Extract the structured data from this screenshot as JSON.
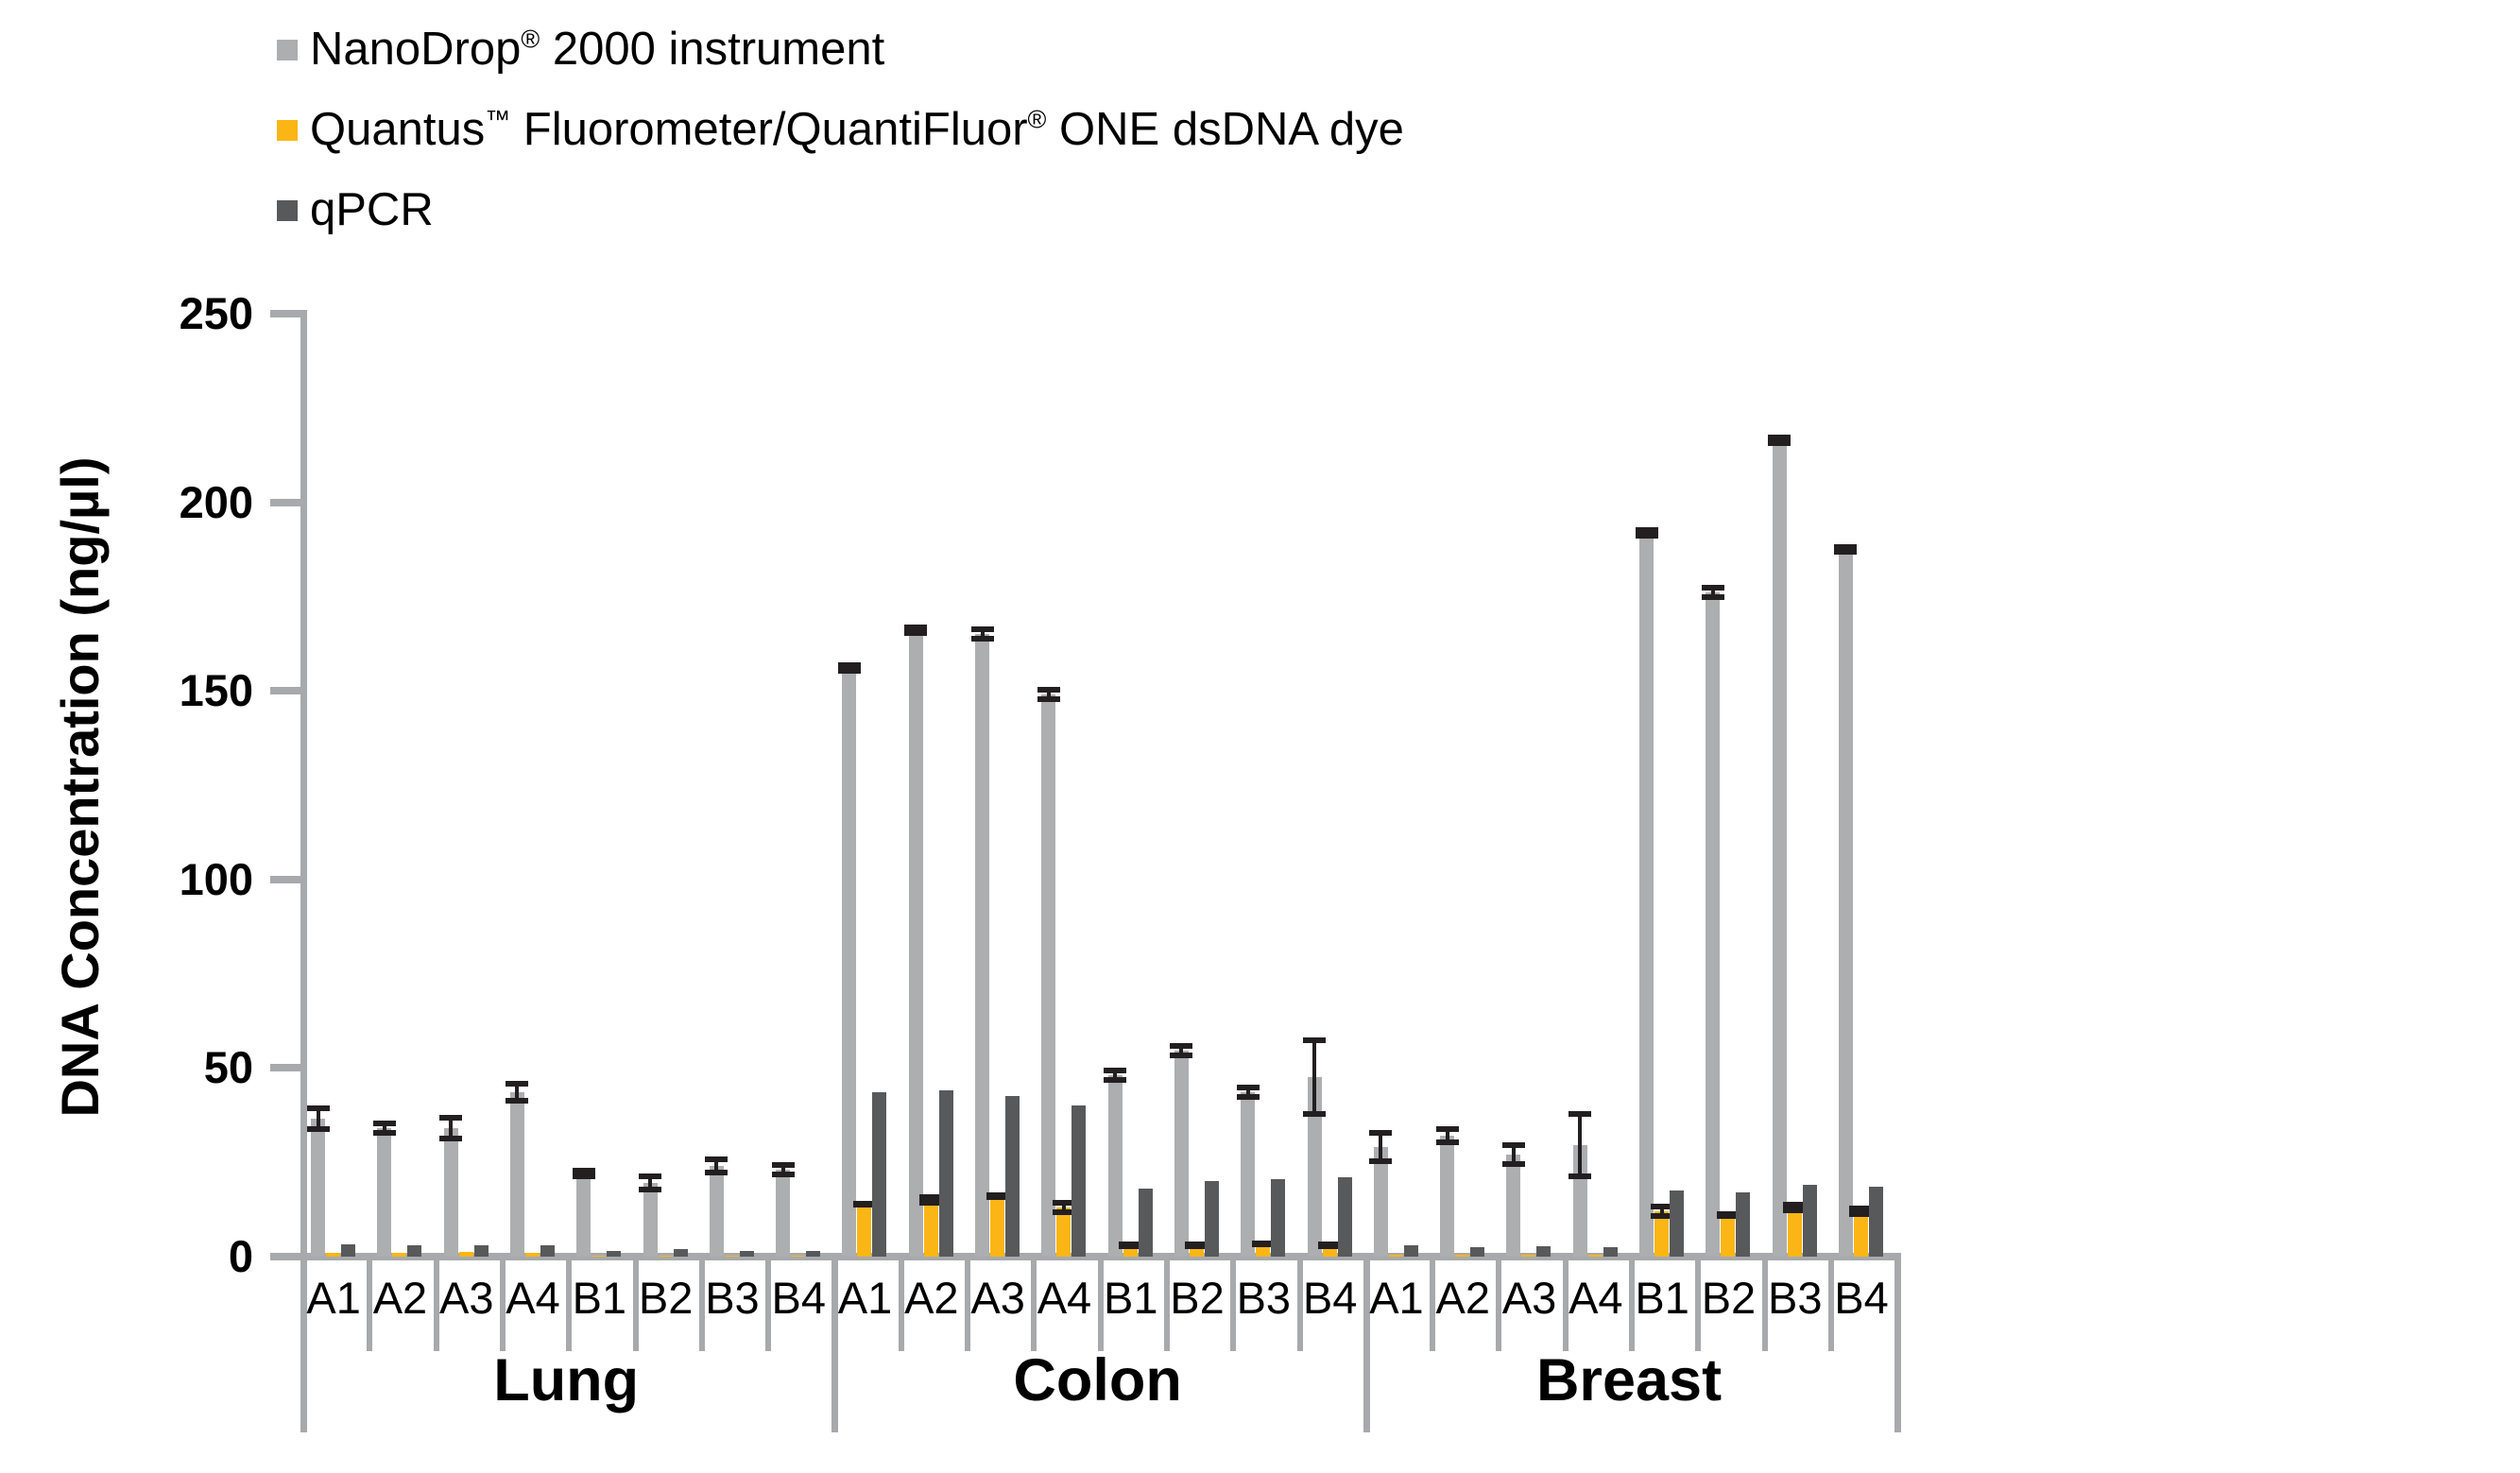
{
  "chart_data": {
    "type": "bar",
    "title": "",
    "ylabel": "DNA Concentration (ng/µl)",
    "ylim": [
      0,
      250
    ],
    "yticks": [
      "0",
      "50",
      "100",
      "150",
      "200",
      "250"
    ],
    "grid": false,
    "legend_position": "top-left",
    "axis_color": "#A7A9AC",
    "error_color": "#231F20",
    "groups": [
      {
        "label": "Lung",
        "samples": [
          "A1",
          "A2",
          "A3",
          "A4",
          "B1",
          "B2",
          "B3",
          "B4"
        ]
      },
      {
        "label": "Colon",
        "samples": [
          "A1",
          "A2",
          "A3",
          "A4",
          "B1",
          "B2",
          "B3",
          "B4"
        ]
      },
      {
        "label": "Breast",
        "samples": [
          "A1",
          "A2",
          "A3",
          "A4",
          "B1",
          "B2",
          "B3",
          "B4"
        ]
      }
    ],
    "series": [
      {
        "name": "NanoDrop® 2000 instrument",
        "color": "#ACAEB0",
        "values": [
          [
            36.5,
            34,
            34,
            43.5,
            22,
            19.5,
            24,
            23
          ],
          [
            156,
            166,
            165,
            149,
            48,
            54.5,
            43.5,
            47.5
          ],
          [
            29,
            32,
            27,
            29.5,
            192,
            176,
            216.5,
            187.5
          ]
        ],
        "errors": [
          [
            3,
            1.5,
            3,
            2.5,
            1,
            2,
            2,
            1.5
          ],
          [
            1,
            1,
            1.5,
            1.5,
            1.5,
            1.5,
            1.5,
            10
          ],
          [
            4,
            2,
            2.7,
            8.5,
            1,
            1.5,
            1,
            1
          ]
        ]
      },
      {
        "name": "Quantus™ Fluorometer/QuantiFluor® ONE dsDNA dye",
        "color": "#FBB615",
        "values": [
          [
            1,
            1,
            1.2,
            1,
            0.3,
            0.3,
            0.3,
            0.3
          ],
          [
            14,
            15,
            16,
            13,
            3,
            3,
            3.3,
            3
          ],
          [
            0.5,
            0.5,
            0.5,
            0.5,
            12,
            11,
            13,
            12
          ]
        ],
        "errors": [
          [
            0,
            0,
            0,
            0,
            0,
            0,
            0,
            0
          ],
          [
            0.4,
            1,
            0.5,
            1.5,
            0.4,
            0.4,
            0.4,
            0.4
          ],
          [
            0,
            0,
            0,
            0,
            1.5,
            0.5,
            1,
            1
          ]
        ]
      },
      {
        "name": "qPCR",
        "color": "#58595B",
        "values": [
          [
            3.3,
            2.9,
            3,
            3,
            1.4,
            2,
            1.6,
            1.6
          ],
          [
            43.5,
            44,
            42.5,
            40,
            18,
            20,
            20.5,
            21
          ],
          [
            3,
            2.5,
            2.7,
            2.4,
            17.5,
            17,
            19,
            18.5
          ]
        ],
        "errors": [
          [
            0,
            0,
            0,
            0,
            0,
            0,
            0,
            0
          ],
          [
            0,
            0,
            0,
            0,
            0,
            0,
            0,
            0
          ],
          [
            0,
            0,
            0,
            0,
            0,
            0,
            0,
            0
          ]
        ]
      }
    ]
  }
}
